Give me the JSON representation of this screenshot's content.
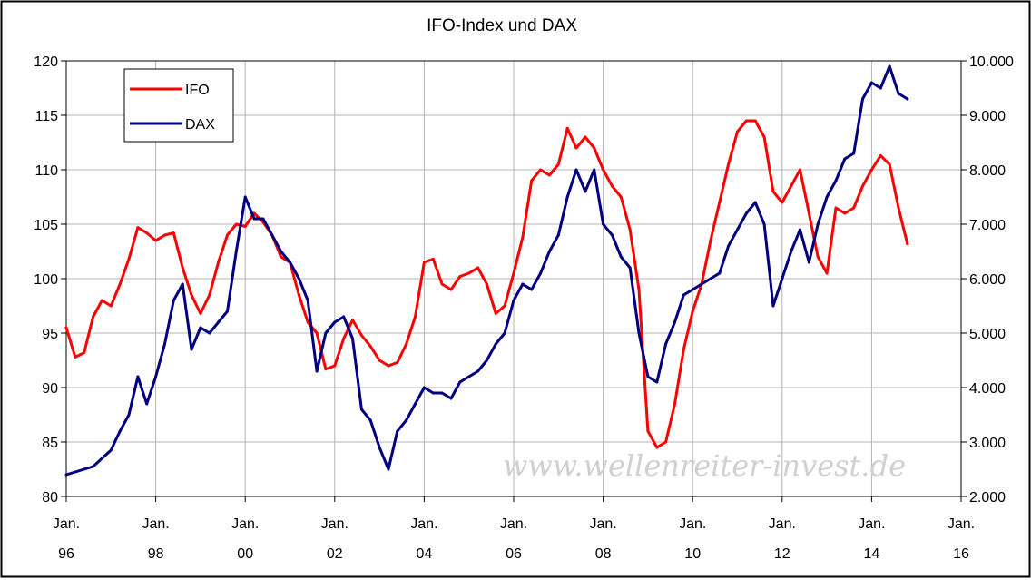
{
  "chart_data": {
    "type": "line",
    "title": "IFO-Index und DAX",
    "xlabel": "",
    "ylabel": "",
    "grid": true,
    "legend_position": "top-left",
    "x_ticks": [
      {
        "top": "Jan.",
        "bottom": "96"
      },
      {
        "top": "Jan.",
        "bottom": "98"
      },
      {
        "top": "Jan.",
        "bottom": "00"
      },
      {
        "top": "Jan.",
        "bottom": "02"
      },
      {
        "top": "Jan.",
        "bottom": "04"
      },
      {
        "top": "Jan.",
        "bottom": "06"
      },
      {
        "top": "Jan.",
        "bottom": "08"
      },
      {
        "top": "Jan.",
        "bottom": "10"
      },
      {
        "top": "Jan.",
        "bottom": "12"
      },
      {
        "top": "Jan.",
        "bottom": "14"
      },
      {
        "top": "Jan.",
        "bottom": "16"
      }
    ],
    "xlim": [
      1996.0,
      2016.0
    ],
    "y_left": {
      "lim": [
        80,
        120
      ],
      "ticks": [
        "80",
        "85",
        "90",
        "95",
        "100",
        "105",
        "110",
        "115",
        "120"
      ]
    },
    "y_right": {
      "lim": [
        2000,
        10000
      ],
      "ticks": [
        "2.000",
        "3.000",
        "4.000",
        "5.000",
        "6.000",
        "7.000",
        "8.000",
        "9.000",
        "10.000"
      ]
    },
    "series": [
      {
        "name": "IFO",
        "color": "#ff0000",
        "axis": "left",
        "x": [
          1996.0,
          1996.2,
          1996.4,
          1996.6,
          1996.8,
          1997.0,
          1997.2,
          1997.4,
          1997.6,
          1997.8,
          1998.0,
          1998.2,
          1998.4,
          1998.6,
          1998.8,
          1999.0,
          1999.2,
          1999.4,
          1999.6,
          1999.8,
          2000.0,
          2000.2,
          2000.4,
          2000.6,
          2000.8,
          2001.0,
          2001.2,
          2001.4,
          2001.6,
          2001.8,
          2002.0,
          2002.2,
          2002.4,
          2002.6,
          2002.8,
          2003.0,
          2003.2,
          2003.4,
          2003.6,
          2003.8,
          2004.0,
          2004.2,
          2004.4,
          2004.6,
          2004.8,
          2005.0,
          2005.2,
          2005.4,
          2005.6,
          2005.8,
          2006.0,
          2006.2,
          2006.4,
          2006.6,
          2006.8,
          2007.0,
          2007.2,
          2007.4,
          2007.6,
          2007.8,
          2008.0,
          2008.2,
          2008.4,
          2008.6,
          2008.8,
          2009.0,
          2009.2,
          2009.4,
          2009.6,
          2009.8,
          2010.0,
          2010.2,
          2010.4,
          2010.6,
          2010.8,
          2011.0,
          2011.2,
          2011.4,
          2011.6,
          2011.8,
          2012.0,
          2012.2,
          2012.4,
          2012.6,
          2012.8,
          2013.0,
          2013.2,
          2013.4,
          2013.6,
          2013.8,
          2014.0,
          2014.2,
          2014.4,
          2014.6,
          2014.8
        ],
        "values": [
          95.5,
          92.8,
          93.2,
          96.5,
          98.0,
          97.5,
          99.5,
          101.8,
          104.7,
          104.2,
          103.5,
          104.0,
          104.2,
          101.0,
          98.5,
          96.8,
          98.5,
          101.5,
          104.0,
          105.0,
          104.8,
          106.0,
          105.2,
          104.0,
          102.0,
          101.5,
          98.5,
          96.0,
          95.0,
          91.7,
          92.0,
          94.5,
          96.2,
          94.8,
          93.8,
          92.5,
          92.0,
          92.3,
          94.0,
          96.5,
          101.5,
          101.8,
          99.5,
          99.0,
          100.2,
          100.5,
          101.0,
          99.5,
          96.8,
          97.5,
          100.5,
          103.8,
          109.0,
          110.0,
          109.5,
          110.5,
          113.8,
          112.0,
          113.0,
          112.0,
          110.0,
          108.5,
          107.5,
          104.5,
          99.0,
          86.0,
          84.5,
          85.0,
          88.5,
          93.5,
          97.0,
          99.5,
          103.5,
          107.0,
          110.5,
          113.5,
          114.5,
          114.5,
          113.0,
          108.0,
          107.0,
          108.5,
          110.0,
          106.0,
          102.0,
          100.5,
          106.5,
          106.0,
          106.5,
          108.5,
          110.0,
          111.3,
          110.5,
          106.5,
          103.2
        ]
      },
      {
        "name": "DAX",
        "color": "#000080",
        "axis": "right",
        "x": [
          1996.0,
          1996.2,
          1996.4,
          1996.6,
          1996.8,
          1997.0,
          1997.2,
          1997.4,
          1997.6,
          1997.8,
          1998.0,
          1998.2,
          1998.4,
          1998.6,
          1998.8,
          1999.0,
          1999.2,
          1999.4,
          1999.6,
          1999.8,
          2000.0,
          2000.2,
          2000.4,
          2000.6,
          2000.8,
          2001.0,
          2001.2,
          2001.4,
          2001.6,
          2001.8,
          2002.0,
          2002.2,
          2002.4,
          2002.6,
          2002.8,
          2003.0,
          2003.2,
          2003.4,
          2003.6,
          2003.8,
          2004.0,
          2004.2,
          2004.4,
          2004.6,
          2004.8,
          2005.0,
          2005.2,
          2005.4,
          2005.6,
          2005.8,
          2006.0,
          2006.2,
          2006.4,
          2006.6,
          2006.8,
          2007.0,
          2007.2,
          2007.4,
          2007.6,
          2007.8,
          2008.0,
          2008.2,
          2008.4,
          2008.6,
          2008.8,
          2009.0,
          2009.2,
          2009.4,
          2009.6,
          2009.8,
          2010.0,
          2010.2,
          2010.4,
          2010.6,
          2010.8,
          2011.0,
          2011.2,
          2011.4,
          2011.6,
          2011.8,
          2012.0,
          2012.2,
          2012.4,
          2012.6,
          2012.8,
          2013.0,
          2013.2,
          2013.4,
          2013.6,
          2013.8,
          2014.0,
          2014.2,
          2014.4,
          2014.6,
          2014.8
        ],
        "values": [
          2400,
          2450,
          2500,
          2550,
          2700,
          2850,
          3200,
          3500,
          4200,
          3700,
          4200,
          4800,
          5600,
          5900,
          4700,
          5100,
          5000,
          5200,
          5400,
          6500,
          7500,
          7100,
          7100,
          6800,
          6500,
          6300,
          6000,
          5600,
          4300,
          5000,
          5200,
          5300,
          4900,
          3600,
          3400,
          2900,
          2500,
          3200,
          3400,
          3700,
          4000,
          3900,
          3900,
          3800,
          4100,
          4200,
          4300,
          4500,
          4800,
          5000,
          5600,
          5900,
          5800,
          6100,
          6500,
          6800,
          7500,
          8000,
          7600,
          8000,
          7000,
          6800,
          6400,
          6200,
          5000,
          4200,
          4100,
          4800,
          5200,
          5700,
          5800,
          5900,
          6000,
          6100,
          6600,
          6900,
          7200,
          7400,
          7000,
          5500,
          6000,
          6500,
          6900,
          6300,
          7000,
          7500,
          7800,
          8200,
          8300,
          9300,
          9600,
          9500,
          9900,
          9400,
          9300
        ]
      }
    ],
    "watermark": "www.wellenreiter-invest.de"
  }
}
